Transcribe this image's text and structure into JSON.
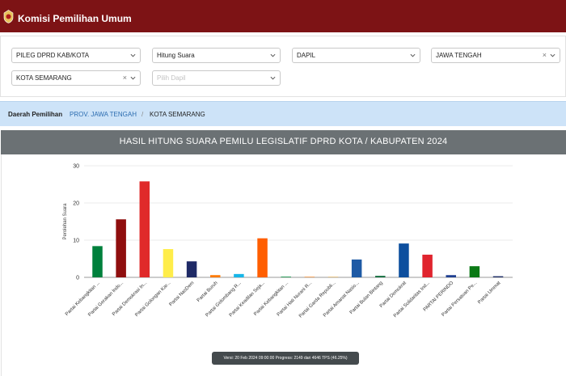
{
  "header": {
    "title": "Komisi Pemilihan Umum",
    "logo_icon": "kpu-logo-icon",
    "bg_color": "#7d1315"
  },
  "filters": {
    "election": "PILEG DPRD KAB/KOTA",
    "count_type": "Hitung Suara",
    "region_type": "DAPIL",
    "province": "JAWA TENGAH",
    "city": "KOTA SEMARANG",
    "dapil_placeholder": "Pilih Dapil",
    "clear_symbol": "×"
  },
  "breadcrumb": {
    "label": "Daerah Pemilihan",
    "link": "PROV. JAWA TENGAH",
    "separator": "/",
    "current": "KOTA SEMARANG"
  },
  "panel": {
    "title": "HASIL HITUNG SUARA PEMILU LEGISLATIF DPRD KOTA / KABUPATEN 2024"
  },
  "chart_data": {
    "type": "bar",
    "title": "",
    "xlabel": "",
    "ylabel": "Perolehan Suara",
    "ylim": [
      0,
      30
    ],
    "yticks": [
      0,
      10,
      20,
      30
    ],
    "grid": true,
    "categories": [
      "Partai Kebangkitan ...",
      "Partai Gerakan Indo...",
      "Partai Demokrasi In...",
      "Partai Golongan Kar...",
      "Partai NasDem",
      "Partai Buruh",
      "Partai Gelombang R...",
      "Partai Keadilan Seja...",
      "Partai Kebangkitan ...",
      "Partai Hati Nurani R...",
      "Partai Garda Republi...",
      "Partai Amanat Nasio...",
      "Partai Bulan Bintang",
      "Partai Demokrat",
      "Partai Solidaritas Ind...",
      "PARTAI PERINDO",
      "Partai Persatuan Pe...",
      "Partai Ummat"
    ],
    "values": [
      8.4,
      15.6,
      25.8,
      7.6,
      4.3,
      0.6,
      0.9,
      10.5,
      0.1,
      0.2,
      0.1,
      4.8,
      0.4,
      9.1,
      6.1,
      0.6,
      3.0,
      0.3
    ],
    "colors": [
      "#00803c",
      "#8f0e0e",
      "#e02a2a",
      "#ffed4a",
      "#1f2a66",
      "#ff7a00",
      "#17b6e8",
      "#ff5e00",
      "#008a3a",
      "#f5a25a",
      "#e3b96f",
      "#1e5aa5",
      "#0e6b3a",
      "#0d4f9e",
      "#e0242e",
      "#1e3f91",
      "#0b7a16",
      "#1d2d66"
    ]
  },
  "tooltip": {
    "text": "Versi: 20 Feb 2024 09:00:00 Progress: 2149 dari 4646 TPS (46.25%)"
  }
}
